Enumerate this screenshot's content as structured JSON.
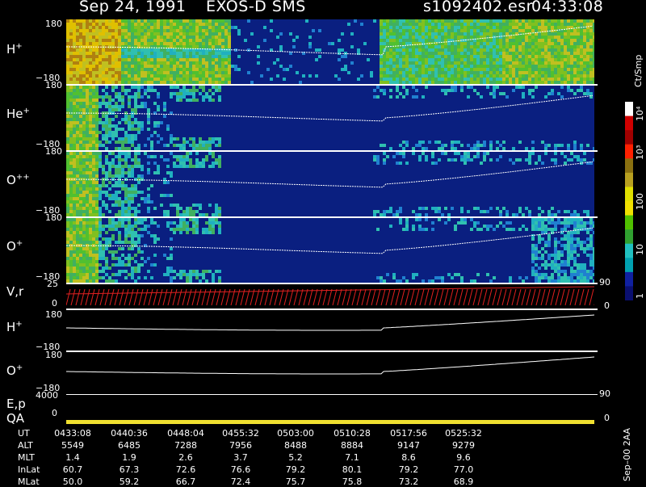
{
  "header": {
    "date": "Sep 24, 1991",
    "instrument": "EXOS-D SMS",
    "file": "s1092402.esr",
    "time": "04:33:08"
  },
  "panels": [
    {
      "label": "H",
      "sup": "+",
      "top_tick": "180",
      "bottom_tick": "−180"
    },
    {
      "label": "He",
      "sup": "+",
      "top_tick": "180",
      "bottom_tick": "−180"
    },
    {
      "label": "O",
      "sup": "++",
      "top_tick": "180",
      "bottom_tick": "−180"
    },
    {
      "label": "O",
      "sup": "+",
      "top_tick": "180",
      "bottom_tick": "−180"
    }
  ],
  "vr_panel": {
    "label": "V,r",
    "left_top": "25",
    "left_bottom": "0",
    "right_top": "90",
    "right_bottom": "0"
  },
  "h_line_panel": {
    "label": "H",
    "sup": "+",
    "top_tick": "180",
    "bottom_tick": "−180"
  },
  "o_line_panel": {
    "label": "O",
    "sup": "+",
    "top_tick": "180",
    "bottom_tick": "−180"
  },
  "ep_panel": {
    "label": "E,p",
    "left_tick": "4000",
    "right_tick": "90"
  },
  "qa_panel": {
    "label": "QA",
    "left_tick": "0",
    "right_tick": "0"
  },
  "colorbar": {
    "unit": "Ct/Smp",
    "labels": [
      "10⁴",
      "10³",
      "100",
      "10",
      "1"
    ],
    "colors": [
      "#ffffff",
      "#d00000",
      "#a00000",
      "#ff2000",
      "#8a7010",
      "#b8a020",
      "#e0e000",
      "#f0e000",
      "#50c000",
      "#30a030",
      "#20c0c0",
      "#00a0b0",
      "#1020a0",
      "#0a0f70"
    ]
  },
  "footer": {
    "version": "Sep–00 2AA",
    "rows": [
      {
        "name": "UT",
        "values": [
          "0433:08",
          "0440:36",
          "0448:04",
          "0455:32",
          "0503:00",
          "0510:28",
          "0517:56",
          "0525:32"
        ]
      },
      {
        "name": "ALT",
        "values": [
          "5549",
          "6485",
          "7288",
          "7956",
          "8488",
          "8884",
          "9147",
          "9279"
        ]
      },
      {
        "name": "MLT",
        "values": [
          "1.4",
          "1.9",
          "2.6",
          "3.7",
          "5.2",
          "7.1",
          "8.6",
          "9.6"
        ]
      },
      {
        "name": "InLat",
        "values": [
          "60.7",
          "67.3",
          "72.6",
          "76.6",
          "79.2",
          "80.1",
          "79.2",
          "77.0"
        ]
      },
      {
        "name": "MLat",
        "values": [
          "50.0",
          "59.2",
          "66.7",
          "72.4",
          "75.7",
          "75.8",
          "73.2",
          "68.9"
        ]
      }
    ]
  },
  "chart_data": {
    "type": "heatmap",
    "title": "Sep 24, 1991  EXOS-D SMS",
    "ylim": [
      -180,
      180
    ],
    "x": [
      "0433:08",
      "0440:36",
      "0448:04",
      "0455:32",
      "0503:00",
      "0510:28",
      "0517:56",
      "0525:32"
    ],
    "series": [
      {
        "name": "H+"
      },
      {
        "name": "He+"
      },
      {
        "name": "O++"
      },
      {
        "name": "O+"
      }
    ],
    "colorbar": {
      "label": "Ct/Smp",
      "scale": "log",
      "range": [
        1,
        10000
      ]
    }
  }
}
